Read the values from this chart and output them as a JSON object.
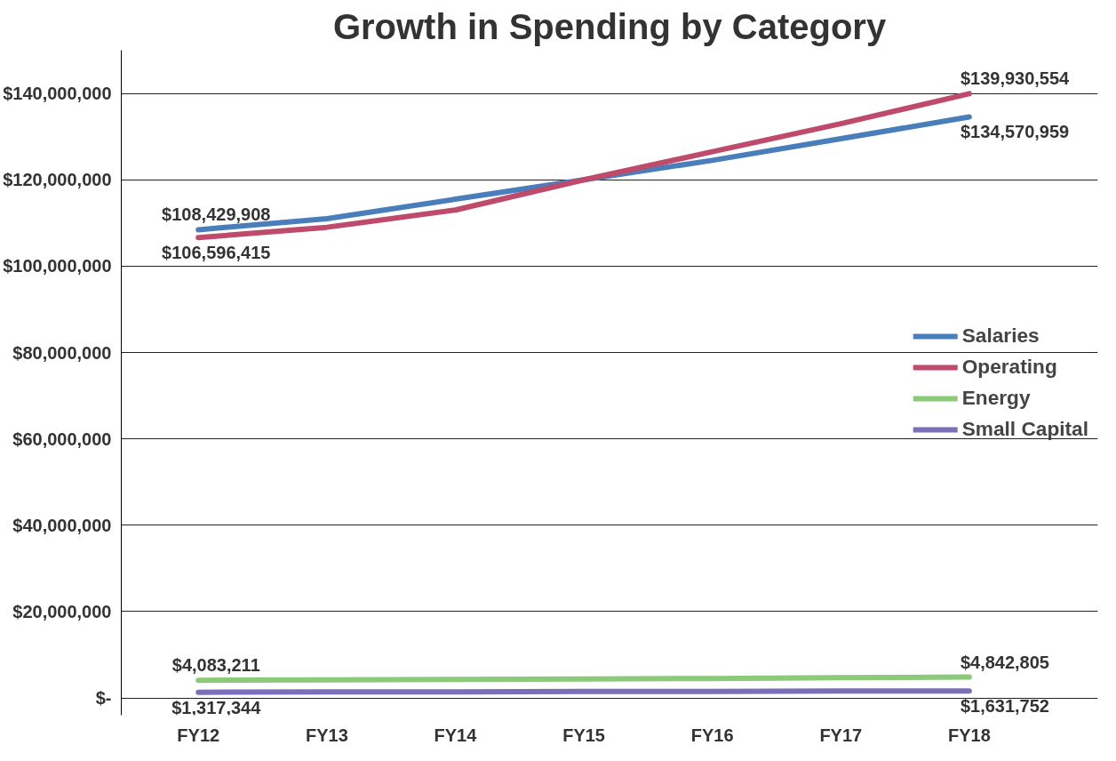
{
  "chart_data": {
    "type": "line",
    "title": "Growth in Spending by Category",
    "categories": [
      "FY12",
      "FY13",
      "FY14",
      "FY15",
      "FY16",
      "FY17",
      "FY18"
    ],
    "series": [
      {
        "name": "Salaries",
        "color": "#4a7ebb",
        "values": [
          108429908,
          111000000,
          115500000,
          120000000,
          124500000,
          129500000,
          134570959
        ],
        "value_labels": [
          "$108,429,908",
          null,
          null,
          null,
          null,
          null,
          "$134,570,959"
        ]
      },
      {
        "name": "Operating",
        "color": "#be4b6b",
        "values": [
          106596415,
          109000000,
          113000000,
          120000000,
          126500000,
          133000000,
          139930554
        ],
        "value_labels": [
          "$106,596,415",
          null,
          null,
          null,
          null,
          null,
          "$139,930,554"
        ]
      },
      {
        "name": "Energy",
        "color": "#8cc97a",
        "values": [
          4083211,
          4200000,
          4300000,
          4400000,
          4500000,
          4700000,
          4842805
        ],
        "value_labels": [
          "$4,083,211",
          null,
          null,
          null,
          null,
          null,
          "$4,842,805"
        ]
      },
      {
        "name": "Small Capital",
        "color": "#7a6fb8",
        "values": [
          1317344,
          1400000,
          1400000,
          1500000,
          1500000,
          1600000,
          1631752
        ],
        "value_labels": [
          "$1,317,344",
          null,
          null,
          null,
          null,
          null,
          "$1,631,752"
        ]
      }
    ],
    "ylim": [
      -4000000,
      150000000
    ],
    "yticks": [
      {
        "value": 0,
        "label": "$-"
      },
      {
        "value": 20000000,
        "label": "$20,000,000"
      },
      {
        "value": 40000000,
        "label": "$40,000,000"
      },
      {
        "value": 60000000,
        "label": "$60,000,000"
      },
      {
        "value": 80000000,
        "label": "$80,000,000"
      },
      {
        "value": 100000000,
        "label": "$100,000,000"
      },
      {
        "value": 120000000,
        "label": "$120,000,000"
      },
      {
        "value": 140000000,
        "label": "$140,000,000"
      }
    ],
    "grid": "y",
    "legend": "right",
    "marker": "none",
    "line_style": "solid"
  }
}
